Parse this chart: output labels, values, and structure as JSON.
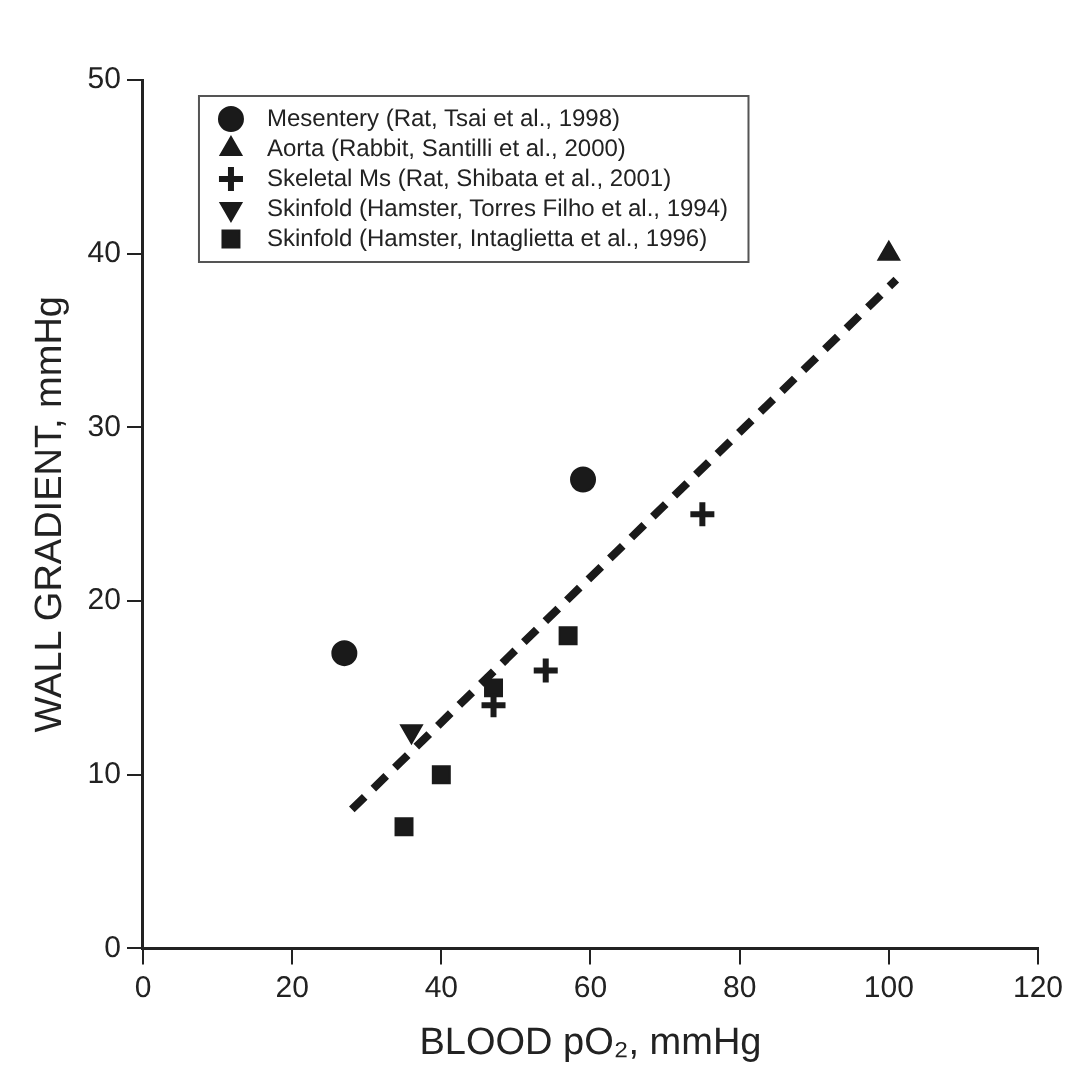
{
  "chart_data": {
    "type": "scatter",
    "xlabel": "BLOOD pO₂, mmHg",
    "ylabel": "WALL GRADIENT, mmHg",
    "xlim": [
      0,
      120
    ],
    "xticks": [
      0,
      20,
      40,
      60,
      80,
      100,
      120
    ],
    "ylim": [
      0,
      50
    ],
    "yticks": [
      0,
      10,
      20,
      30,
      40,
      50
    ],
    "legend": "top left",
    "series": [
      {
        "name": "Mesentery (Rat, Tsai et al., 1998)",
        "color": "#1a1a1a",
        "marker": "circle",
        "x": [
          27,
          59
        ],
        "values": [
          17,
          27
        ]
      },
      {
        "name": "Aorta (Rabbit, Santilli et al., 2000)",
        "color": "#1a1a1a",
        "marker": "triangle",
        "x": [
          100
        ],
        "values": [
          40
        ]
      },
      {
        "name": "Skeletal Ms (Rat, Shibata et al., 2001)",
        "color": "#1a1a1a",
        "marker": "cross",
        "x": [
          47,
          54,
          75
        ],
        "values": [
          14,
          16,
          25
        ]
      },
      {
        "name": "Skinfold (Hamster, Torres Filho et al., 1994)",
        "color": "#1a1a1a",
        "marker": "triangle-down",
        "x": [
          36
        ],
        "values": [
          12.5
        ]
      },
      {
        "name": "Skinfold (Hamster, Intaglietta et al., 1996)",
        "color": "#1a1a1a",
        "marker": "square",
        "x": [
          35,
          40,
          47,
          57
        ],
        "values": [
          7,
          10,
          15,
          18
        ]
      },
      {
        "type": "line",
        "color": "#1a1a1a",
        "line_style": "dashed",
        "marker": "none",
        "x": [
          28,
          101
        ],
        "values": [
          8,
          38.5
        ]
      }
    ]
  }
}
